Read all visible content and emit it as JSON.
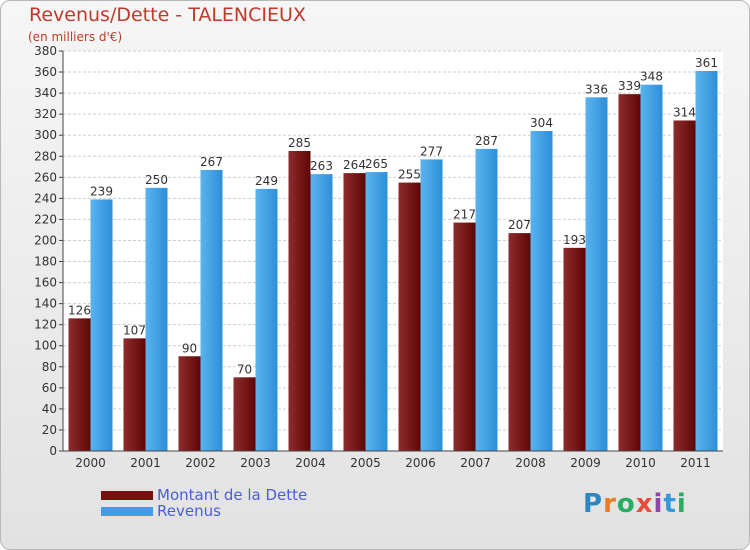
{
  "header": {
    "title": "Revenus/Dette - TALENCIEUX",
    "subtitle": "(en milliers d'€)"
  },
  "legend": {
    "debt_label": "Montant de la Dette",
    "revenue_label": "Revenus"
  },
  "logo": {
    "letters": [
      "P",
      "r",
      "o",
      "x",
      "i",
      "t",
      "i"
    ],
    "colors": [
      "#2e86c1",
      "#e67e22",
      "#27ae60",
      "#e74c3c",
      "#8e44ad",
      "#3498db",
      "#27ae60"
    ]
  },
  "colors": {
    "debt": "#7a0f0f",
    "debt_light": "#8a2a2a",
    "revenue": "#3a9fe6",
    "title": "#c0392b",
    "legend_text": "#4a5fd6"
  },
  "chart_data": {
    "type": "bar",
    "title": "Revenus/Dette - TALENCIEUX",
    "ylabel": "(en milliers d'€)",
    "xlabel": "",
    "ylim": [
      0,
      380
    ],
    "ytick_step": 20,
    "grid": true,
    "legend_position": "bottom-left",
    "categories": [
      "2000",
      "2001",
      "2002",
      "2003",
      "2004",
      "2005",
      "2006",
      "2007",
      "2008",
      "2009",
      "2010",
      "2011"
    ],
    "series": [
      {
        "name": "Montant de la Dette",
        "values": [
          126,
          107,
          90,
          70,
          285,
          264,
          255,
          217,
          207,
          193,
          339,
          314
        ]
      },
      {
        "name": "Revenus",
        "values": [
          239,
          250,
          267,
          249,
          263,
          265,
          277,
          287,
          304,
          336,
          348,
          361
        ]
      }
    ]
  }
}
